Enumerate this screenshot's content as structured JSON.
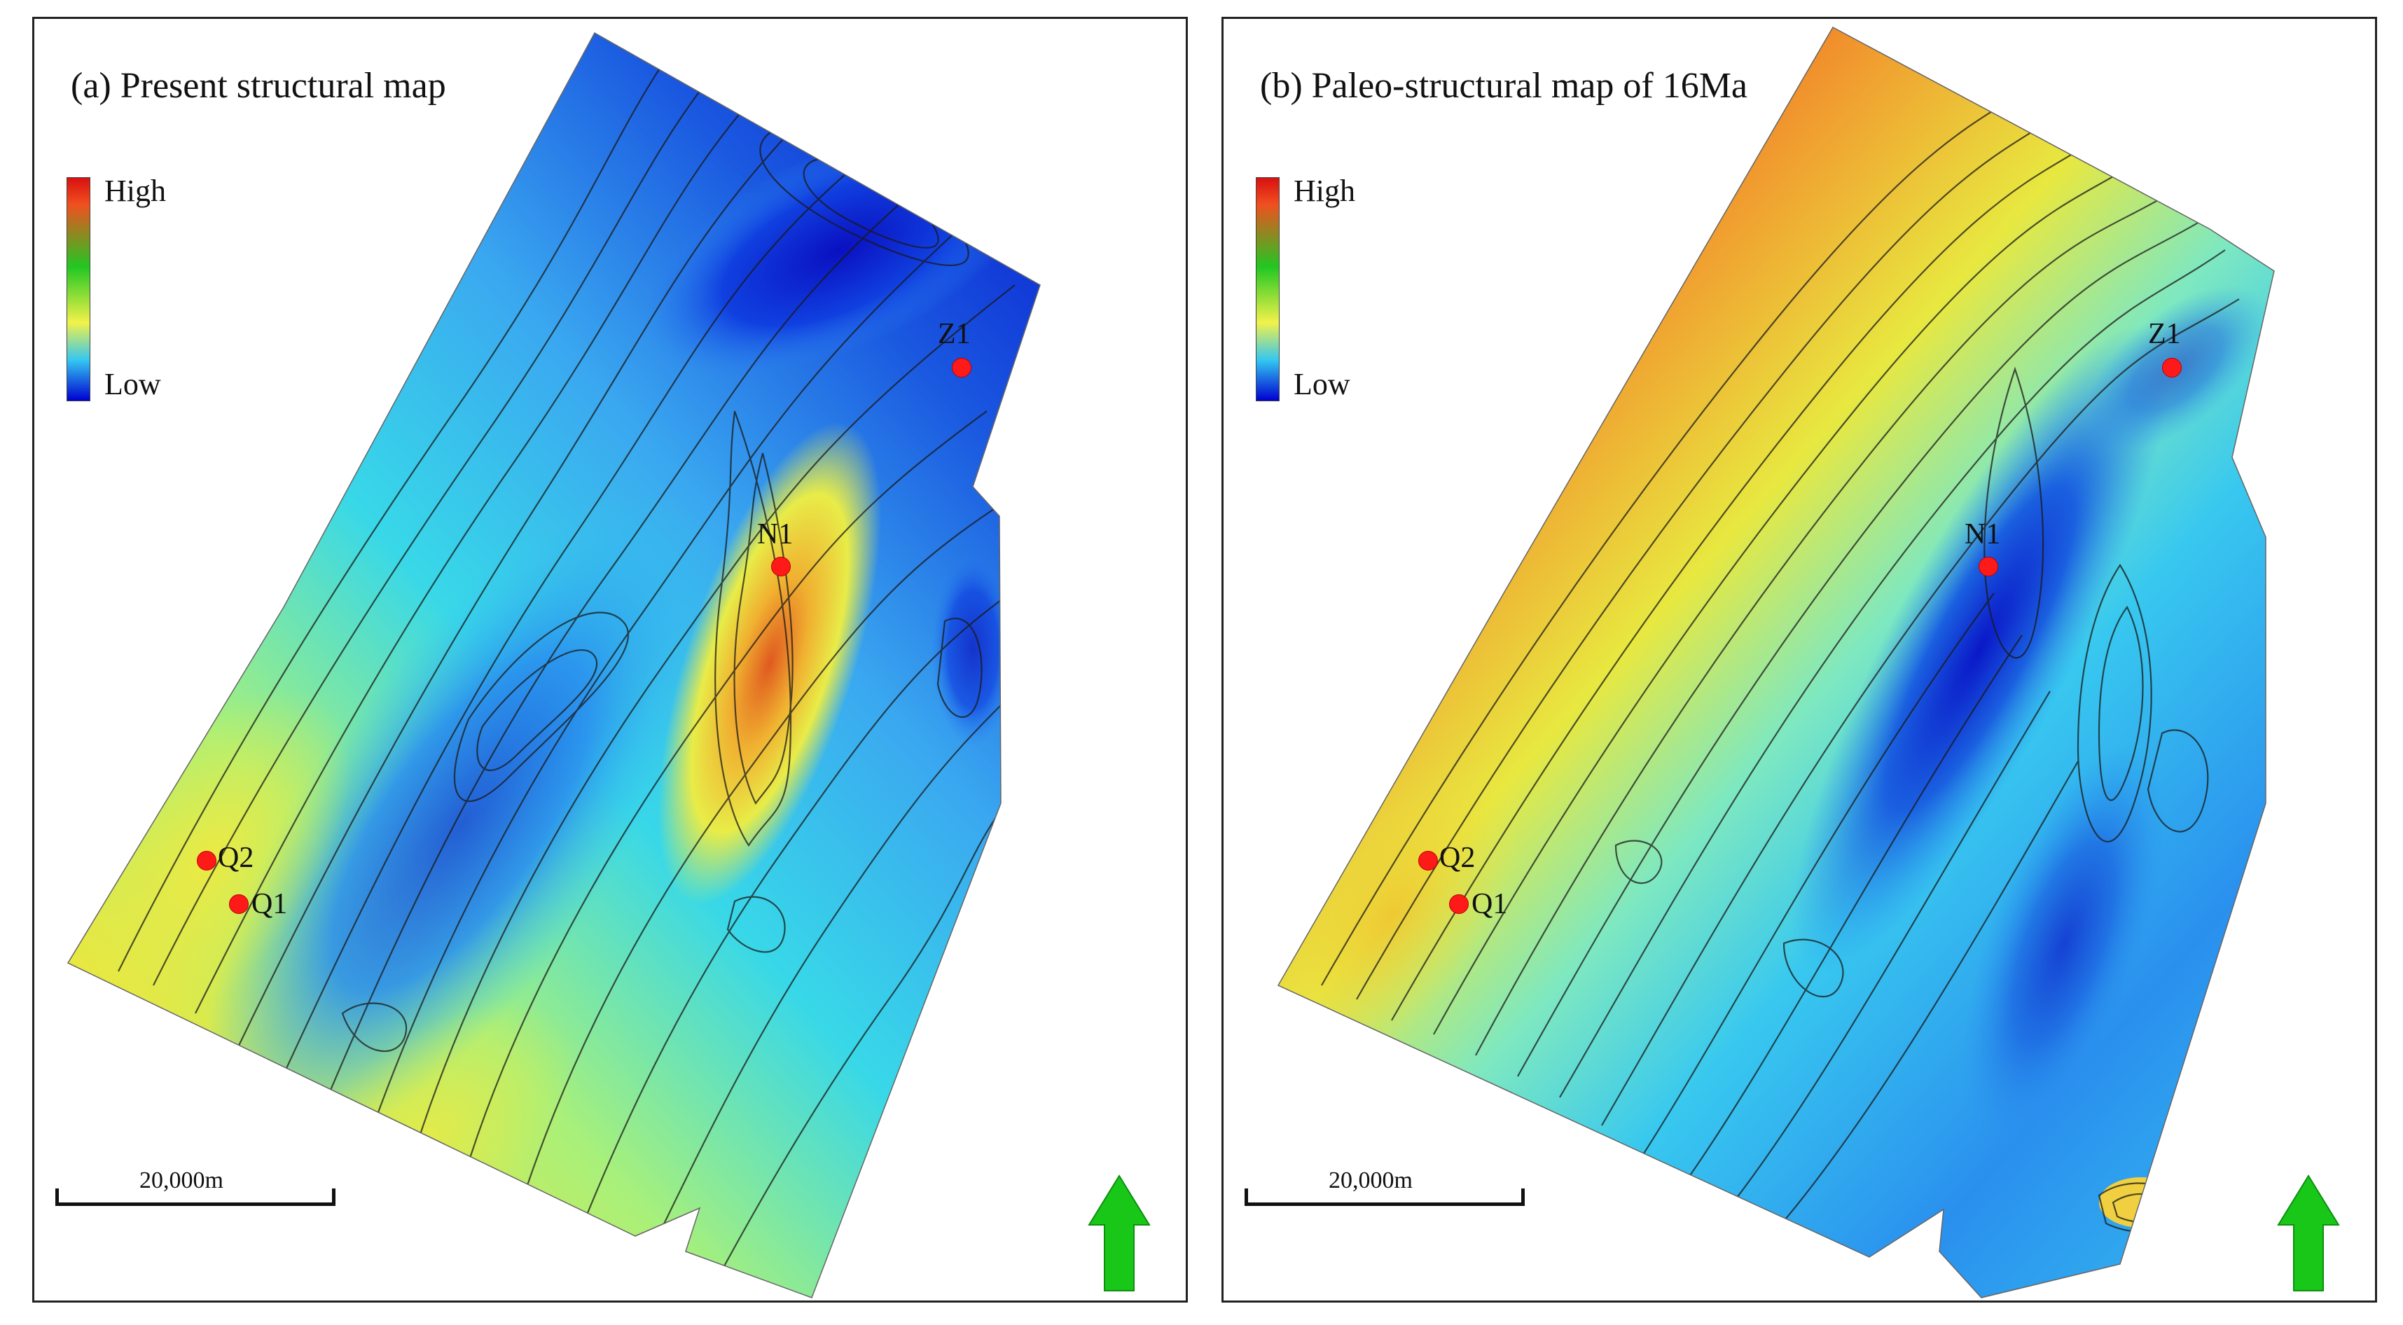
{
  "figure": {
    "panels": [
      {
        "id": "a",
        "title": "(a) Present structural map",
        "legend": {
          "high": "High",
          "low": "Low"
        },
        "scale": {
          "label": "20,000m"
        },
        "wells": [
          "Q2",
          "Q1",
          "N1",
          "Z1"
        ],
        "colors": [
          "#0a1fd0",
          "#1e7cf0",
          "#38d6f0",
          "#9ff07e",
          "#f0f040",
          "#f0b030",
          "#e04020",
          "#c81010"
        ]
      },
      {
        "id": "b",
        "title": "(b) Paleo-structural map of 16Ma",
        "legend": {
          "high": "High",
          "low": "Low"
        },
        "scale": {
          "label": "20,000m"
        },
        "wells": [
          "Q2",
          "Q1",
          "N1",
          "Z1"
        ],
        "colors": [
          "#0a1fd0",
          "#1e7cf0",
          "#38d6f0",
          "#9ff07e",
          "#f0f040",
          "#f0b030",
          "#e04020",
          "#c81010"
        ]
      }
    ],
    "legend_gradient": [
      "#0000d0",
      "#33c6f2",
      "#f2f24a",
      "#22c722",
      "#f05020",
      "#d81010"
    ],
    "north_arrow_color": "#19c719",
    "well_marker_color": "#ff1a1a"
  }
}
